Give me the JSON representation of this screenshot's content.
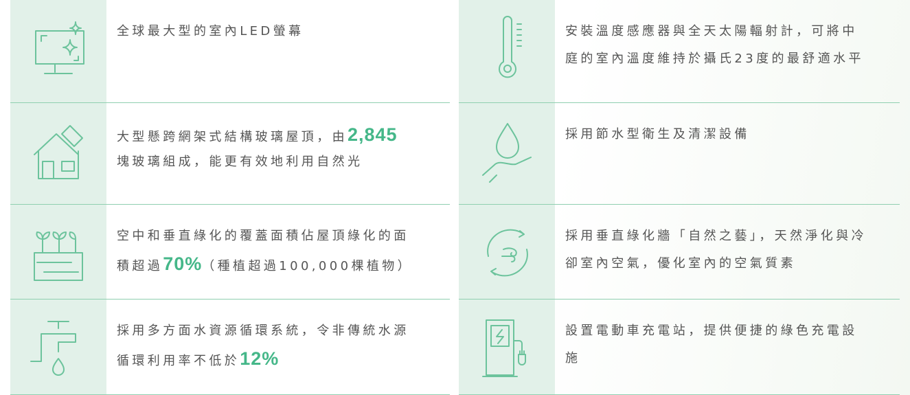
{
  "items": [
    {
      "lines": [
        [
          {
            "text": "全球最大型的室內LED螢幕"
          }
        ]
      ]
    },
    {
      "lines": [
        [
          {
            "text": "安裝溫度感應器與全天太陽輻射計，可將中"
          }
        ],
        [
          {
            "text": "庭的室內溫度維持於攝氏23度的最舒適水平"
          }
        ]
      ]
    },
    {
      "lines": [
        [
          {
            "text": "大型懸跨網架式結構玻璃屋頂，由"
          },
          {
            "strong": "2,845"
          }
        ],
        [
          {
            "text": "塊玻璃組成，能更有效地利用自然光"
          }
        ]
      ]
    },
    {
      "lines": [
        [
          {
            "text": "採用節水型衛生及清潔設備"
          }
        ]
      ]
    },
    {
      "lines": [
        [
          {
            "text": "空中和垂直綠化的覆蓋面積佔屋頂綠化的面"
          }
        ],
        [
          {
            "text": "積超過"
          },
          {
            "strong": "70%"
          },
          {
            "text": "（種植超過100,000棵植物）"
          }
        ]
      ]
    },
    {
      "lines": [
        [
          {
            "text": "採用垂直綠化牆「自然之藝」，天然淨化與冷"
          }
        ],
        [
          {
            "text": "卻室內空氣，優化室內的空氣質素"
          }
        ]
      ]
    },
    {
      "lines": [
        [
          {
            "text": "採用多方面水資源循環系統，令非傳統水源"
          }
        ],
        [
          {
            "text": "循環利用率不低於"
          },
          {
            "strong": "12%"
          }
        ]
      ]
    },
    {
      "lines": [
        [
          {
            "text": "設置電動車充電站，提供便捷的綠色充電設"
          }
        ],
        [
          {
            "text": "施"
          }
        ]
      ]
    }
  ]
}
